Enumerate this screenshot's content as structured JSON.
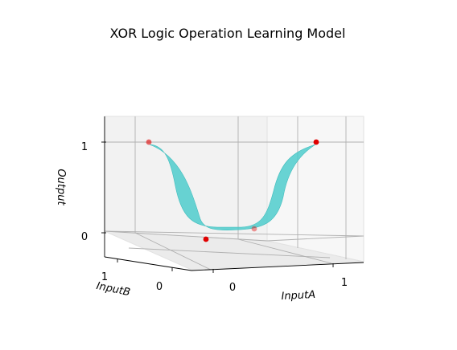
{
  "chart_data": {
    "type": "3d-surface-scatter",
    "title": "XOR Logic Operation Learning Model",
    "xlabel": "InputA",
    "ylabel": "InputB",
    "zlabel": "Output",
    "x_ticks": [
      "0",
      "1"
    ],
    "y_ticks": [
      "0",
      "1"
    ],
    "z_ticks": [
      "0",
      "1"
    ],
    "xlim": [
      -0.2,
      1.2
    ],
    "ylim": [
      -0.2,
      1.2
    ],
    "zlim": [
      -0.3,
      1.3
    ],
    "surface_color": "#48cbcb",
    "point_color": "#e00000",
    "points": [
      {
        "x": 0,
        "y": 0,
        "z": 0
      },
      {
        "x": 0,
        "y": 1,
        "z": 1
      },
      {
        "x": 1,
        "y": 0,
        "z": 1
      },
      {
        "x": 1,
        "y": 1,
        "z": 0
      }
    ]
  }
}
